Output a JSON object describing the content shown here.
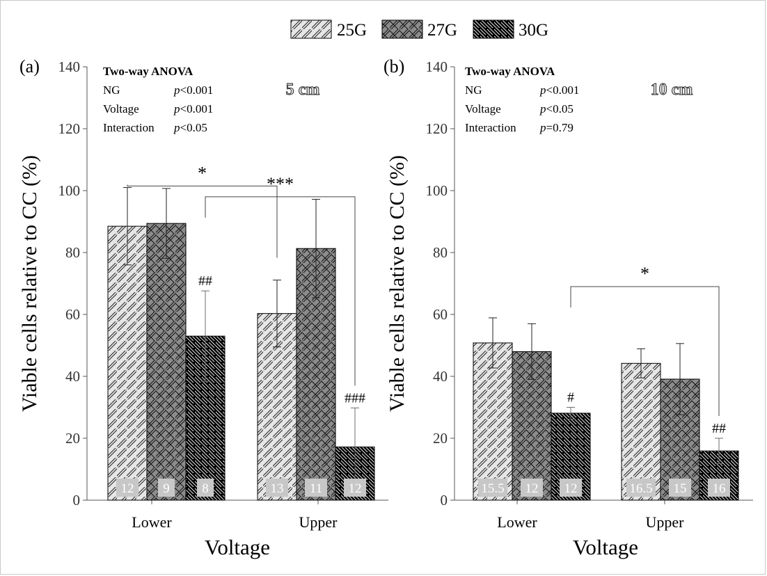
{
  "legend": {
    "items": [
      {
        "label": "25G",
        "pattern": "diag-light"
      },
      {
        "label": "27G",
        "pattern": "cross-gray"
      },
      {
        "label": "30G",
        "pattern": "diag-black"
      }
    ]
  },
  "colors": {
    "light_fill": "#e6e6e6",
    "gray_fill": "#8c8c8c",
    "black_fill": "#000000",
    "count_box": "#c7c7c7"
  },
  "chart_data": [
    {
      "type": "bar",
      "panel_label": "(a)",
      "title": "5 cm",
      "xlabel": "Voltage",
      "ylabel": "Viable cells relative to CC (%)",
      "ylim": [
        0,
        140
      ],
      "yticks": [
        0,
        20,
        40,
        60,
        80,
        100,
        120,
        140
      ],
      "categories": [
        "Lower",
        "Upper"
      ],
      "series": [
        {
          "name": "25G",
          "values": [
            88.5,
            60.3
          ],
          "errors": [
            12.5,
            10.8
          ],
          "counts": [
            "12",
            "13"
          ],
          "annotations": [
            "",
            ""
          ]
        },
        {
          "name": "27G",
          "values": [
            89.4,
            81.3
          ],
          "errors": [
            11.3,
            15.9
          ],
          "counts": [
            "9",
            "11"
          ],
          "annotations": [
            "",
            ""
          ]
        },
        {
          "name": "30G",
          "values": [
            53.0,
            17.2
          ],
          "errors": [
            14.6,
            12.6
          ],
          "counts": [
            "8",
            "12"
          ],
          "annotations": [
            "##",
            "###"
          ]
        }
      ],
      "anova": {
        "heading": "Two-way ANOVA",
        "rows": [
          {
            "factor": "NG",
            "p_symbol": "p",
            "p_value": "<0.001"
          },
          {
            "factor": "Voltage",
            "p_symbol": "p",
            "p_value": "<0.001"
          },
          {
            "factor": "Interaction",
            "p_symbol": "p",
            "p_value": "<0.05"
          }
        ]
      },
      "brackets": [
        {
          "from": {
            "category": 0,
            "series": 0
          },
          "to": {
            "category": 1,
            "series": 0
          },
          "level": 101.5,
          "label": "*"
        },
        {
          "from": {
            "category": 0,
            "series": 2
          },
          "to": {
            "category": 1,
            "series": 2
          },
          "level": 98,
          "label": "***"
        }
      ]
    },
    {
      "type": "bar",
      "panel_label": "(b)",
      "title": "10 cm",
      "xlabel": "Voltage",
      "ylabel": "Viable cells relative to CC (%)",
      "ylim": [
        0,
        140
      ],
      "yticks": [
        0,
        20,
        40,
        60,
        80,
        100,
        120,
        140
      ],
      "categories": [
        "Lower",
        "Upper"
      ],
      "series": [
        {
          "name": "25G",
          "values": [
            50.8,
            44.2
          ],
          "errors": [
            8.1,
            4.7
          ],
          "counts": [
            "15.5",
            "16.5"
          ],
          "annotations": [
            "",
            ""
          ]
        },
        {
          "name": "27G",
          "values": [
            48.0,
            39.1
          ],
          "errors": [
            9.0,
            11.5
          ],
          "counts": [
            "12",
            "15"
          ],
          "annotations": [
            "",
            ""
          ]
        },
        {
          "name": "30G",
          "values": [
            28.1,
            15.9
          ],
          "errors": [
            1.9,
            4.1
          ],
          "counts": [
            "12",
            "16"
          ],
          "annotations": [
            "#",
            "##"
          ]
        }
      ],
      "anova": {
        "heading": "Two-way ANOVA",
        "rows": [
          {
            "factor": "NG",
            "p_symbol": "p",
            "p_value": "<0.001"
          },
          {
            "factor": "Voltage",
            "p_symbol": "p",
            "p_value": "<0.05"
          },
          {
            "factor": "Interaction",
            "p_symbol": "p",
            "p_value": "=0.79"
          }
        ]
      },
      "brackets": [
        {
          "from": {
            "category": 0,
            "series": 2
          },
          "to": {
            "category": 1,
            "series": 2
          },
          "level": 69,
          "label": "*"
        }
      ]
    }
  ]
}
